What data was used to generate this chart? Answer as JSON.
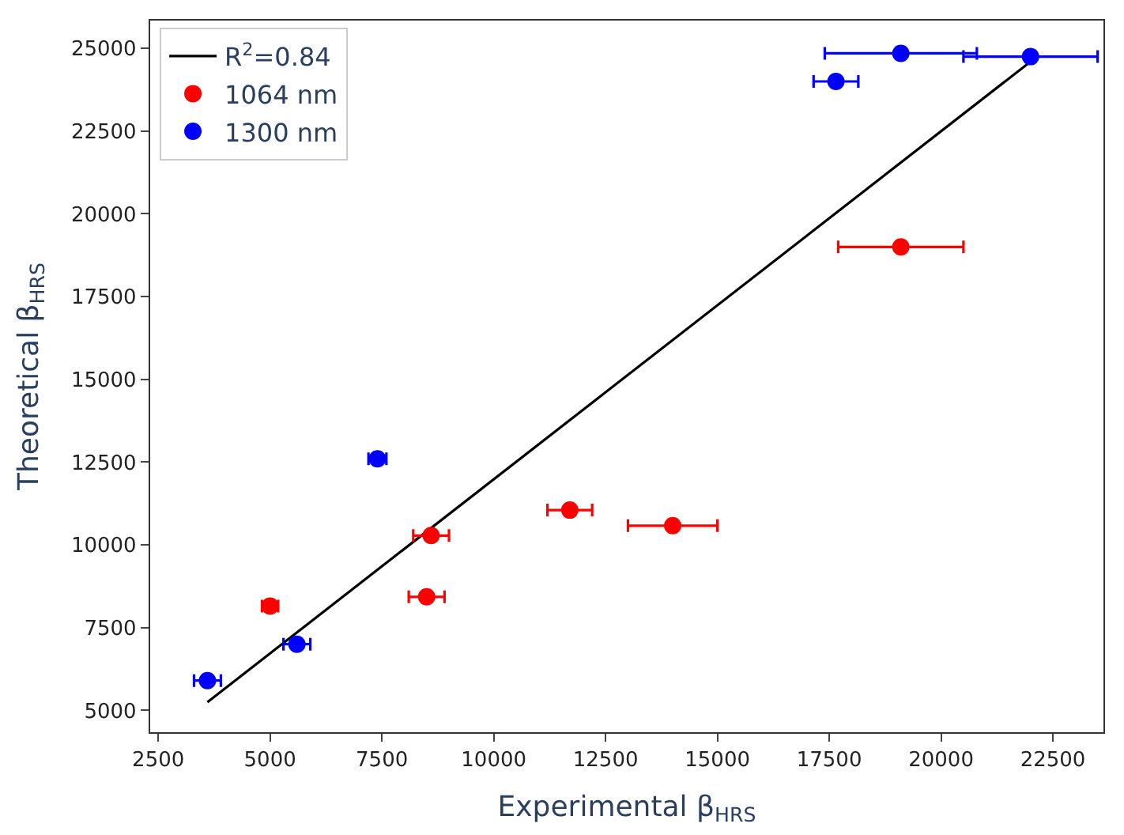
{
  "chart_data": {
    "type": "scatter",
    "xlabel": "Experimental β$_{HRS}$",
    "ylabel": "Theoretical β$_{HRS}$",
    "xlim": [
      2320,
      23630
    ],
    "ylim": [
      4340,
      25840
    ],
    "xticks": [
      2500,
      5000,
      7500,
      10000,
      12500,
      15000,
      17500,
      20000,
      22500
    ],
    "yticks": [
      5000,
      7500,
      10000,
      12500,
      15000,
      17500,
      20000,
      22500,
      25000
    ],
    "grid": false,
    "legend": "top left",
    "marker": "circle",
    "series": [
      {
        "name": "R$^{2}$=0.84",
        "type": "line",
        "color": "#000000",
        "x": [
          3600,
          22000
        ],
        "values": [
          5250,
          24600
        ],
        "marker": "none"
      },
      {
        "name": "1064 nm",
        "color": "#ff0000",
        "x": [
          5000,
          8600,
          8500,
          11700,
          14000,
          19100
        ],
        "values": [
          8150,
          10280,
          8430,
          11050,
          10580,
          19000
        ],
        "xerrors": [
          180,
          400,
          400,
          500,
          1000,
          1400
        ]
      },
      {
        "name": "1300 nm",
        "color": "#0000ff",
        "x": [
          3600,
          5600,
          7400,
          17650,
          19100,
          22000
        ],
        "values": [
          5900,
          7000,
          12600,
          24000,
          24850,
          24750
        ],
        "xerrors": [
          300,
          300,
          200,
          500,
          1700,
          1500
        ]
      }
    ]
  }
}
